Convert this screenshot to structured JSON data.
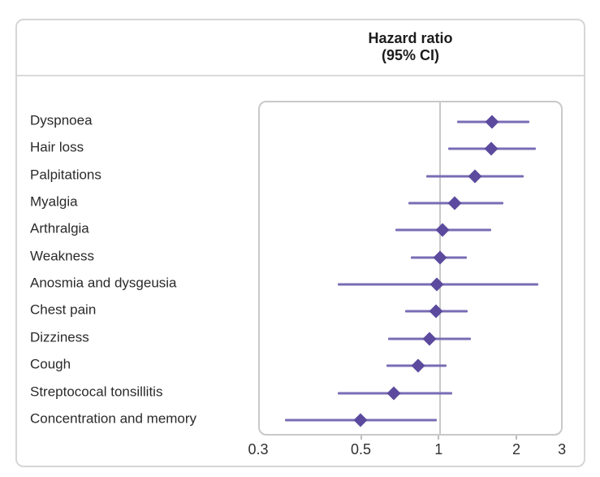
{
  "figure": {
    "header": {
      "line1": "Hazard ratio",
      "line2": "(95% CI)"
    }
  },
  "chart_data": {
    "type": "scatter",
    "subtype": "forest-plot",
    "title": "Hazard ratio (95% CI)",
    "orientation": "horizontal",
    "grid": false,
    "legend": null,
    "x_axis": {
      "scale": "log",
      "min": 0.2,
      "max": 3.02,
      "reference_line_value": 1,
      "ticks": [
        {
          "label": "0.3",
          "value": 0.3,
          "percent_override": 0,
          "tick_mark": false
        },
        {
          "label": "0.5",
          "value": 0.5,
          "tick_mark": true
        },
        {
          "label": "1",
          "value": 1,
          "tick_mark": true
        },
        {
          "label": "2",
          "value": 2,
          "tick_mark": true
        },
        {
          "label": "3",
          "value": 3,
          "tick_mark": false
        }
      ]
    },
    "rows": [
      {
        "label": "Dyspnoea",
        "hr": 1.59,
        "ci_low": 1.16,
        "ci_high": 2.21
      },
      {
        "label": "Hair loss",
        "hr": 1.57,
        "ci_low": 1.07,
        "ci_high": 2.34
      },
      {
        "label": "Palpitations",
        "hr": 1.36,
        "ci_low": 0.88,
        "ci_high": 2.1
      },
      {
        "label": "Myalgia",
        "hr": 1.14,
        "ci_low": 0.75,
        "ci_high": 1.75
      },
      {
        "label": "Arthralgia",
        "hr": 1.02,
        "ci_low": 0.67,
        "ci_high": 1.57
      },
      {
        "label": "Weakness",
        "hr": 1.0,
        "ci_low": 0.77,
        "ci_high": 1.27
      },
      {
        "label": "Anosmia and dysgeusia",
        "hr": 0.97,
        "ci_low": 0.4,
        "ci_high": 2.4
      },
      {
        "label": "Chest pain",
        "hr": 0.96,
        "ci_low": 0.73,
        "ci_high": 1.28
      },
      {
        "label": "Dizziness",
        "hr": 0.91,
        "ci_low": 0.63,
        "ci_high": 1.31
      },
      {
        "label": "Cough",
        "hr": 0.82,
        "ci_low": 0.62,
        "ci_high": 1.06
      },
      {
        "label": "Streptococal tonsillitis",
        "hr": 0.66,
        "ci_low": 0.4,
        "ci_high": 1.11
      },
      {
        "label": "Concentration and memory",
        "hr": 0.49,
        "ci_low": 0.25,
        "ci_high": 0.97
      }
    ],
    "colors": {
      "marker": "#5b4a9d",
      "ci_line": "#7a6cb5",
      "reference_line": "#c8c8c8"
    }
  }
}
